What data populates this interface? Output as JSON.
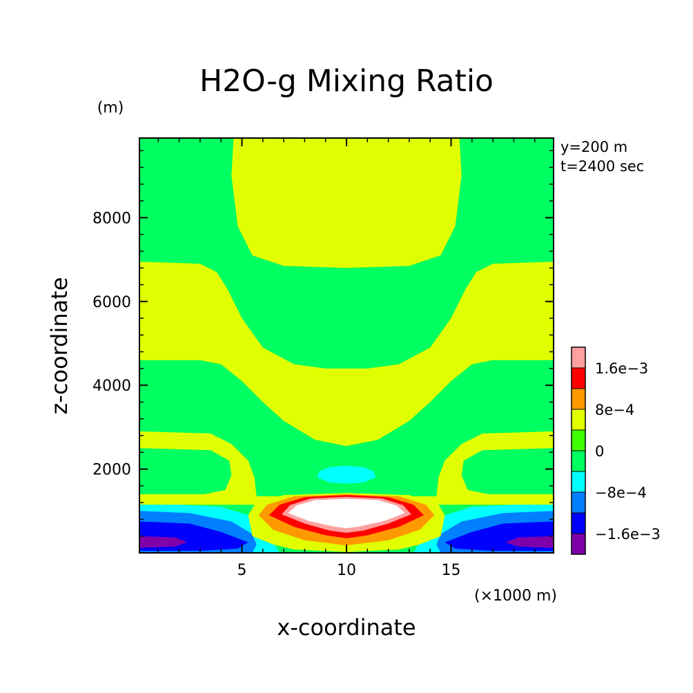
{
  "chart_data": {
    "type": "heatmap",
    "title": "H2O-g Mixing Ratio",
    "xlabel": "x-coordinate",
    "ylabel": "z-coordinate",
    "x_units": "(×1000 m)",
    "y_units": "(m)",
    "xlim": [
      0.1,
      19.9
    ],
    "ylim": [
      0,
      9900
    ],
    "xticks": [
      5,
      10,
      15
    ],
    "yticks": [
      2000,
      4000,
      6000,
      8000
    ],
    "annotations": [
      "y=200 m",
      "t=2400 sec"
    ],
    "colorbar": {
      "levels": [
        -0.002,
        -0.0016,
        -0.0012,
        -0.0008,
        -0.0004,
        0,
        0.0004,
        0.0008,
        0.0012,
        0.0016,
        0.002
      ],
      "colors": [
        "#7f00a8",
        "#0000ff",
        "#0080ff",
        "#00ffff",
        "#00ff60",
        "#40ff00",
        "#e0ff00",
        "#ff9900",
        "#ff0000",
        "#ffa0a0"
      ],
      "labels": [
        {
          "value": -0.0016,
          "text": "−1.6e−3"
        },
        {
          "value": -0.0008,
          "text": "−8e−4"
        },
        {
          "value": 0,
          "text": "0"
        },
        {
          "value": 0.0008,
          "text": "8e−4"
        },
        {
          "value": 0.0016,
          "text": "1.6e−3"
        }
      ]
    },
    "regions": [
      {
        "name": "upper-positive-lobe",
        "level_index": 6,
        "points": [
          [
            4.6,
            9900
          ],
          [
            15.4,
            9900
          ],
          [
            15.5,
            9000
          ],
          [
            15.2,
            7800
          ],
          [
            14.5,
            7100
          ],
          [
            13.0,
            6850
          ],
          [
            10.0,
            6800
          ],
          [
            7.0,
            6850
          ],
          [
            5.5,
            7100
          ],
          [
            4.8,
            7800
          ],
          [
            4.5,
            9000
          ]
        ]
      },
      {
        "name": "left-upper-positive-band",
        "level_index": 6,
        "points": [
          [
            0.1,
            6950
          ],
          [
            3.0,
            6900
          ],
          [
            3.8,
            6700
          ],
          [
            4.3,
            6300
          ],
          [
            5.0,
            5600
          ],
          [
            6.0,
            4900
          ],
          [
            7.5,
            4500
          ],
          [
            9.0,
            4400
          ],
          [
            10.0,
            4400
          ],
          [
            11.0,
            4400
          ],
          [
            12.5,
            4500
          ],
          [
            14.0,
            4900
          ],
          [
            15.0,
            5600
          ],
          [
            15.7,
            6300
          ],
          [
            16.2,
            6700
          ],
          [
            17.0,
            6900
          ],
          [
            19.9,
            6950
          ],
          [
            19.9,
            4600
          ],
          [
            17.0,
            4600
          ],
          [
            16.0,
            4500
          ],
          [
            15.0,
            4100
          ],
          [
            14.0,
            3600
          ],
          [
            13.0,
            3150
          ],
          [
            11.5,
            2700
          ],
          [
            10.0,
            2550
          ],
          [
            8.5,
            2700
          ],
          [
            7.0,
            3150
          ],
          [
            6.0,
            3600
          ],
          [
            5.0,
            4100
          ],
          [
            4.0,
            4500
          ],
          [
            3.0,
            4600
          ],
          [
            0.1,
            4600
          ]
        ]
      },
      {
        "name": "lower-positive-band",
        "level_index": 6,
        "points": [
          [
            0.1,
            2900
          ],
          [
            3.5,
            2850
          ],
          [
            4.5,
            2600
          ],
          [
            5.3,
            2200
          ],
          [
            5.6,
            1800
          ],
          [
            5.7,
            1350
          ],
          [
            14.3,
            1350
          ],
          [
            14.4,
            1800
          ],
          [
            14.7,
            2200
          ],
          [
            15.5,
            2600
          ],
          [
            16.5,
            2850
          ],
          [
            19.9,
            2900
          ],
          [
            19.9,
            2500
          ],
          [
            16.5,
            2450
          ],
          [
            15.6,
            2200
          ],
          [
            15.5,
            1850
          ],
          [
            15.8,
            1500
          ],
          [
            16.8,
            1400
          ],
          [
            19.9,
            1400
          ],
          [
            19.9,
            1150
          ],
          [
            0.1,
            1150
          ],
          [
            0.1,
            1400
          ],
          [
            3.2,
            1400
          ],
          [
            4.2,
            1500
          ],
          [
            4.5,
            1850
          ],
          [
            4.4,
            2200
          ],
          [
            3.5,
            2450
          ],
          [
            0.1,
            2500
          ]
        ]
      },
      {
        "name": "small-negative-blob",
        "level_index": 3,
        "points": [
          [
            8.6,
            1800
          ],
          [
            9.2,
            1680
          ],
          [
            10.0,
            1650
          ],
          [
            10.8,
            1680
          ],
          [
            11.4,
            1800
          ],
          [
            11.3,
            1950
          ],
          [
            10.8,
            2050
          ],
          [
            10.0,
            2080
          ],
          [
            9.2,
            2050
          ],
          [
            8.7,
            1950
          ]
        ]
      },
      {
        "name": "left-surface-cyan",
        "level_index": 3,
        "points": [
          [
            0.1,
            1150
          ],
          [
            2.0,
            1150
          ],
          [
            4.0,
            1100
          ],
          [
            5.3,
            900
          ],
          [
            6.2,
            600
          ],
          [
            6.5,
            250
          ],
          [
            6.8,
            0
          ],
          [
            0.1,
            0
          ]
        ]
      },
      {
        "name": "right-surface-cyan",
        "level_index": 3,
        "points": [
          [
            19.9,
            1150
          ],
          [
            18.0,
            1150
          ],
          [
            16.0,
            1100
          ],
          [
            14.7,
            900
          ],
          [
            13.8,
            600
          ],
          [
            13.5,
            250
          ],
          [
            13.2,
            0
          ],
          [
            19.9,
            0
          ]
        ]
      },
      {
        "name": "left-surface-mid-blue",
        "level_index": 2,
        "points": [
          [
            0.1,
            1000
          ],
          [
            2.5,
            950
          ],
          [
            4.5,
            750
          ],
          [
            5.5,
            450
          ],
          [
            5.7,
            200
          ],
          [
            5.5,
            0
          ],
          [
            0.1,
            0
          ]
        ]
      },
      {
        "name": "right-surface-mid-blue",
        "level_index": 2,
        "points": [
          [
            19.9,
            1000
          ],
          [
            17.5,
            950
          ],
          [
            15.5,
            750
          ],
          [
            14.5,
            450
          ],
          [
            14.3,
            200
          ],
          [
            14.5,
            0
          ],
          [
            19.9,
            0
          ]
        ]
      },
      {
        "name": "left-surface-blue",
        "level_index": 1,
        "points": [
          [
            0.1,
            750
          ],
          [
            2.5,
            700
          ],
          [
            4.0,
            500
          ],
          [
            5.3,
            250
          ],
          [
            4.8,
            100
          ],
          [
            3.0,
            50
          ],
          [
            0.1,
            50
          ]
        ]
      },
      {
        "name": "right-surface-blue",
        "level_index": 1,
        "points": [
          [
            19.9,
            750
          ],
          [
            17.5,
            700
          ],
          [
            16.0,
            500
          ],
          [
            14.7,
            250
          ],
          [
            15.2,
            100
          ],
          [
            17.0,
            50
          ],
          [
            19.9,
            50
          ]
        ]
      },
      {
        "name": "left-surface-purple",
        "level_index": 0,
        "points": [
          [
            0.1,
            400
          ],
          [
            1.8,
            370
          ],
          [
            2.4,
            250
          ],
          [
            1.8,
            150
          ],
          [
            0.1,
            120
          ]
        ]
      },
      {
        "name": "right-surface-purple",
        "level_index": 0,
        "points": [
          [
            19.9,
            400
          ],
          [
            18.2,
            370
          ],
          [
            17.6,
            250
          ],
          [
            18.2,
            150
          ],
          [
            19.9,
            120
          ]
        ]
      },
      {
        "name": "central-yellow",
        "level_index": 6,
        "points": [
          [
            5.3,
            900
          ],
          [
            5.6,
            1150
          ],
          [
            7.0,
            1380
          ],
          [
            10.0,
            1430
          ],
          [
            13.0,
            1380
          ],
          [
            14.4,
            1150
          ],
          [
            14.7,
            900
          ],
          [
            14.5,
            400
          ],
          [
            13.5,
            200
          ],
          [
            12.5,
            80
          ],
          [
            10.0,
            20
          ],
          [
            7.5,
            80
          ],
          [
            6.5,
            200
          ],
          [
            5.5,
            400
          ]
        ]
      },
      {
        "name": "central-orange",
        "level_index": 7,
        "points": [
          [
            5.8,
            900
          ],
          [
            6.2,
            1150
          ],
          [
            7.5,
            1350
          ],
          [
            10.0,
            1400
          ],
          [
            12.5,
            1350
          ],
          [
            13.8,
            1150
          ],
          [
            14.2,
            900
          ],
          [
            13.5,
            550
          ],
          [
            12.0,
            300
          ],
          [
            10.0,
            180
          ],
          [
            8.0,
            300
          ],
          [
            6.5,
            550
          ]
        ]
      },
      {
        "name": "central-red",
        "level_index": 8,
        "points": [
          [
            6.3,
            900
          ],
          [
            6.8,
            1150
          ],
          [
            8.0,
            1330
          ],
          [
            10.0,
            1380
          ],
          [
            12.0,
            1330
          ],
          [
            13.2,
            1150
          ],
          [
            13.7,
            900
          ],
          [
            12.5,
            620
          ],
          [
            11.0,
            420
          ],
          [
            10.0,
            350
          ],
          [
            9.0,
            420
          ],
          [
            7.5,
            620
          ]
        ]
      },
      {
        "name": "central-pink",
        "level_index": 9,
        "points": [
          [
            6.9,
            920
          ],
          [
            7.3,
            1140
          ],
          [
            8.3,
            1300
          ],
          [
            10.0,
            1340
          ],
          [
            11.7,
            1300
          ],
          [
            12.7,
            1140
          ],
          [
            13.1,
            920
          ],
          [
            12.0,
            700
          ],
          [
            10.8,
            530
          ],
          [
            10.0,
            480
          ],
          [
            9.2,
            530
          ],
          [
            8.0,
            700
          ]
        ]
      },
      {
        "name": "central-white-core",
        "level_index": 10,
        "points": [
          [
            7.2,
            950
          ],
          [
            7.6,
            1130
          ],
          [
            8.5,
            1260
          ],
          [
            10.0,
            1290
          ],
          [
            11.5,
            1260
          ],
          [
            12.4,
            1130
          ],
          [
            12.8,
            950
          ],
          [
            11.8,
            760
          ],
          [
            10.5,
            620
          ],
          [
            10.0,
            590
          ],
          [
            9.5,
            620
          ],
          [
            8.2,
            760
          ]
        ]
      }
    ],
    "extreme_color": "#ffffff"
  }
}
